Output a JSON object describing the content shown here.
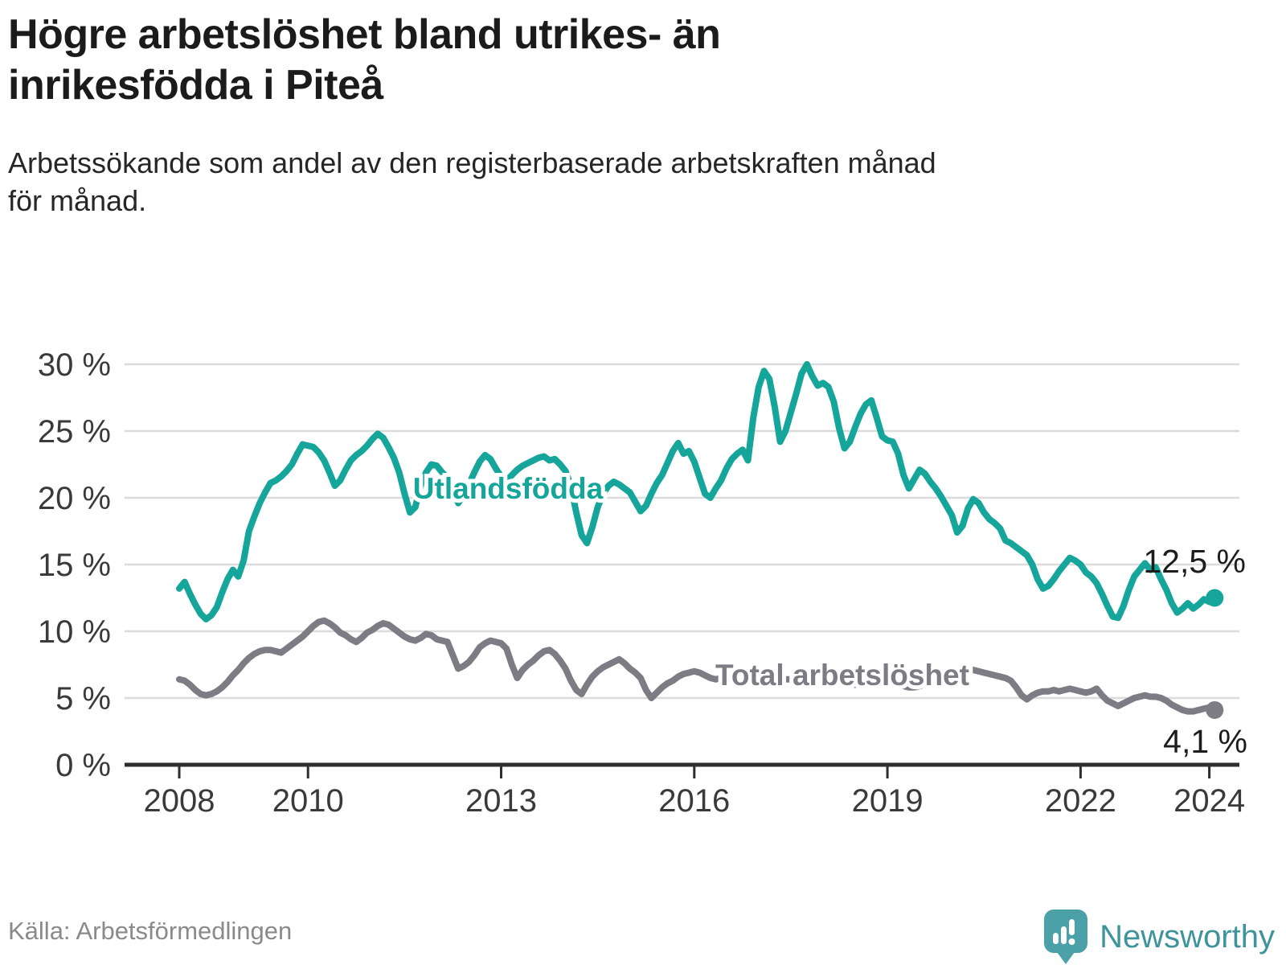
{
  "header": {
    "title_lines": [
      "Högre arbetslöshet bland utrikes- än",
      "inrikesfödda i Piteå"
    ],
    "subtitle_lines": [
      "Arbetssökande som andel av den registerbaserade arbetskraften månad",
      "för månad."
    ]
  },
  "footer": {
    "source": "Källa: Arbetsförmedlingen",
    "brand": "Newsworthy"
  },
  "colors": {
    "utlandsfodda": "#16A59B",
    "total": "#7D7B83",
    "gridline": "#DBDBDB",
    "axis": "#2E2E2E",
    "tick_label": "#3A3A3A",
    "value_label": "#1D1D1B",
    "brand_teal": "#4BA1A7"
  },
  "chart_data": {
    "type": "line",
    "title": "Högre arbetslöshet bland utrikes- än inrikesfödda i Piteå",
    "subtitle": "Arbetssökande som andel av den registerbaserade arbetskraften månad för månad.",
    "unit": "%",
    "frequency": "monthly",
    "x_start": "2008-01",
    "x_end": "2024-02",
    "x_ticks": [
      2008,
      2010,
      2013,
      2016,
      2019,
      2022,
      2024
    ],
    "ylim": [
      0,
      30
    ],
    "y_ticks": [
      0,
      5,
      10,
      15,
      20,
      25,
      30
    ],
    "y_tick_suffix": " %",
    "grid": "horizontal",
    "legend": "inline-labels",
    "series": [
      {
        "name": "Utlandsfödda",
        "color": "#16A59B",
        "end_label": "12,5 %",
        "end_value": 12.5,
        "values": [
          13.2,
          13.7,
          12.8,
          12.0,
          11.3,
          10.9,
          11.2,
          11.8,
          12.9,
          13.9,
          14.6,
          14.1,
          15.3,
          17.5,
          18.6,
          19.6,
          20.4,
          21.1,
          21.3,
          21.6,
          22.0,
          22.5,
          23.3,
          24.0,
          23.9,
          23.8,
          23.4,
          22.8,
          21.9,
          20.9,
          21.3,
          22.1,
          22.8,
          23.2,
          23.5,
          23.9,
          24.4,
          24.8,
          24.5,
          23.8,
          23.0,
          21.9,
          20.3,
          18.9,
          19.3,
          20.9,
          21.9,
          22.5,
          22.4,
          21.9,
          21.5,
          20.6,
          19.6,
          20.2,
          21.0,
          21.9,
          22.7,
          23.2,
          22.9,
          22.2,
          21.6,
          21.3,
          21.7,
          22.1,
          22.4,
          22.6,
          22.8,
          23.0,
          23.1,
          22.8,
          22.9,
          22.5,
          22.0,
          20.9,
          18.9,
          17.2,
          16.6,
          17.8,
          19.3,
          20.3,
          20.9,
          21.2,
          21.0,
          20.7,
          20.4,
          19.7,
          19.0,
          19.4,
          20.3,
          21.1,
          21.7,
          22.6,
          23.5,
          24.1,
          23.3,
          23.5,
          22.7,
          21.5,
          20.3,
          20.0,
          20.7,
          21.3,
          22.2,
          22.9,
          23.3,
          23.6,
          22.8,
          26.0,
          28.3,
          29.5,
          28.9,
          26.8,
          24.2,
          25.0,
          26.4,
          27.8,
          29.3,
          30.0,
          29.1,
          28.4,
          28.6,
          28.3,
          27.2,
          25.2,
          23.7,
          24.2,
          25.3,
          26.3,
          27.0,
          27.3,
          26.0,
          24.6,
          24.3,
          24.2,
          23.3,
          21.7,
          20.7,
          21.4,
          22.1,
          21.8,
          21.2,
          20.7,
          20.1,
          19.4,
          18.7,
          17.4,
          17.9,
          19.2,
          19.9,
          19.6,
          18.9,
          18.4,
          18.1,
          17.7,
          16.8,
          16.6,
          16.3,
          16.0,
          15.7,
          15.0,
          13.9,
          13.2,
          13.4,
          13.9,
          14.5,
          15.0,
          15.5,
          15.3,
          15.0,
          14.4,
          14.1,
          13.6,
          12.8,
          11.9,
          11.1,
          11.0,
          11.9,
          13.1,
          14.1,
          14.6,
          15.1,
          14.6,
          14.8,
          13.9,
          13.1,
          12.1,
          11.4,
          11.7,
          12.1,
          11.7,
          12.0,
          12.4,
          12.2,
          12.5
        ]
      },
      {
        "name": "Total arbetslöshet",
        "color": "#7D7B83",
        "end_label": "4,1 %",
        "end_value": 4.1,
        "values": [
          6.4,
          6.3,
          6.0,
          5.6,
          5.3,
          5.2,
          5.3,
          5.5,
          5.8,
          6.2,
          6.7,
          7.1,
          7.6,
          8.0,
          8.3,
          8.5,
          8.6,
          8.6,
          8.5,
          8.4,
          8.7,
          9.0,
          9.3,
          9.6,
          10.0,
          10.4,
          10.7,
          10.8,
          10.6,
          10.3,
          9.9,
          9.7,
          9.4,
          9.2,
          9.5,
          9.9,
          10.1,
          10.4,
          10.6,
          10.5,
          10.2,
          9.9,
          9.6,
          9.4,
          9.3,
          9.5,
          9.8,
          9.7,
          9.4,
          9.3,
          9.2,
          8.2,
          7.2,
          7.4,
          7.7,
          8.2,
          8.8,
          9.1,
          9.3,
          9.2,
          9.1,
          8.7,
          7.5,
          6.5,
          7.1,
          7.5,
          7.8,
          8.2,
          8.5,
          8.6,
          8.3,
          7.8,
          7.2,
          6.3,
          5.6,
          5.3,
          6.0,
          6.6,
          7.0,
          7.3,
          7.5,
          7.7,
          7.9,
          7.6,
          7.2,
          6.9,
          6.5,
          5.6,
          5.0,
          5.4,
          5.8,
          6.1,
          6.3,
          6.6,
          6.8,
          6.9,
          7.0,
          6.9,
          6.7,
          6.5,
          6.4,
          6.5,
          6.6,
          6.8,
          6.9,
          7.0,
          7.1,
          7.1,
          7.0,
          6.9,
          6.8,
          6.6,
          6.5,
          6.4,
          6.4,
          6.5,
          6.6,
          6.7,
          6.8,
          6.8,
          6.7,
          6.6,
          6.4,
          6.2,
          6.1,
          6.0,
          6.0,
          6.1,
          6.2,
          6.3,
          6.4,
          6.4,
          6.3,
          6.2,
          6.0,
          5.9,
          5.8,
          5.8,
          5.9,
          6.0,
          6.1,
          6.2,
          6.3,
          6.4,
          6.5,
          6.7,
          6.9,
          7.1,
          7.1,
          7.0,
          6.9,
          6.8,
          6.7,
          6.6,
          6.5,
          6.3,
          5.8,
          5.2,
          4.9,
          5.2,
          5.4,
          5.5,
          5.5,
          5.6,
          5.5,
          5.6,
          5.7,
          5.6,
          5.5,
          5.4,
          5.5,
          5.7,
          5.2,
          4.8,
          4.6,
          4.4,
          4.6,
          4.8,
          5.0,
          5.1,
          5.2,
          5.1,
          5.1,
          5.0,
          4.8,
          4.5,
          4.3,
          4.1,
          4.0,
          4.0,
          4.1,
          4.2,
          4.3,
          4.1
        ]
      }
    ]
  }
}
